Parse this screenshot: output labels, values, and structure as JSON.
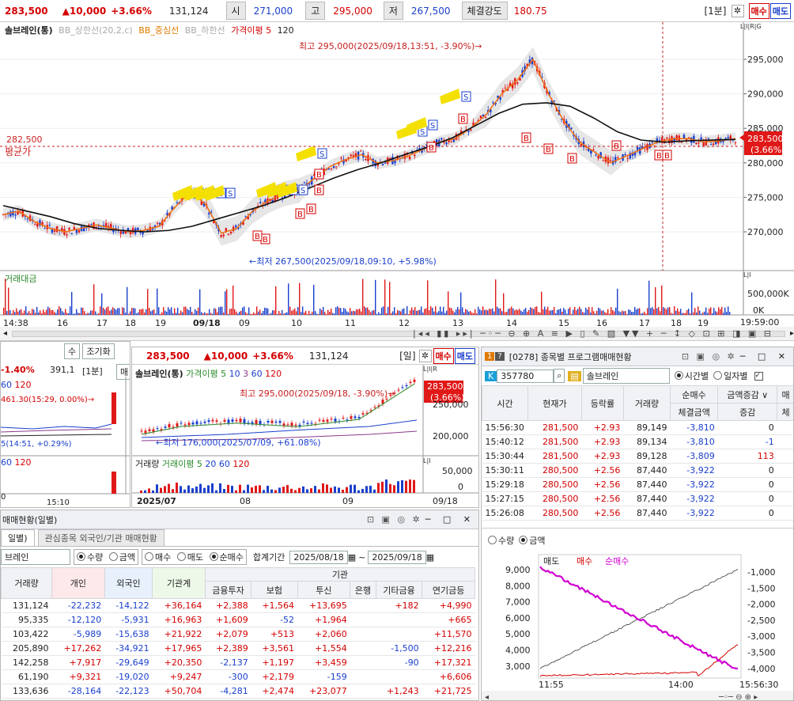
{
  "top": {
    "price": "283,500",
    "change": "▲10,000",
    "rate": "+3.66%",
    "volume": "131,124",
    "open_lbl": "시",
    "open": "271,000",
    "high_lbl": "고",
    "high": "295,000",
    "low_lbl": "저",
    "low": "267,500",
    "strength_lbl": "체결강도",
    "strength": "180.75",
    "period": "[1분]",
    "buy": "매수",
    "sell": "매도"
  },
  "main": {
    "legend_name": "솔브레인(통)",
    "legend_bb_up": "BB_상한선(20,2,c)",
    "legend_bb_mid": "BB_중심선",
    "legend_bb_low": "BB_하한선",
    "legend_ma": "가격이평 5",
    "legend_120": "120",
    "max_note": "최고 295,000(2025/09/18,13:51, -3.90%)→",
    "min_note": "←최저 267,500(2025/09/18,09:10, +5.98%)",
    "avg_price": "282,500",
    "avg_label": "평균가",
    "cur_price": "283,500",
    "cur_rate": "(3.66%)",
    "y_ticks": [
      "295,000",
      "290,000",
      "285,000",
      "280,000",
      "275,000",
      "270,000"
    ],
    "vol_legend": "거래대금",
    "vol_ticks": [
      "500,000K",
      "0K"
    ],
    "x_ticks": [
      "14:38",
      "16",
      "17",
      "18",
      "19",
      "09/18",
      "09",
      "10",
      "11",
      "12",
      "13",
      "14",
      "15",
      "16",
      "17",
      "18",
      "19"
    ],
    "time_end": "19:59:00",
    "lirg": "L|I|R|G",
    "li": "L|I"
  },
  "chart_data": {
    "type": "candlestick",
    "title": "솔브레인(통)",
    "intraday_close_path": [
      272500,
      273000,
      271500,
      270500,
      270000,
      270500,
      271000,
      270500,
      270000,
      270200,
      270800,
      273500,
      275800,
      274000,
      269800,
      270500,
      273000,
      274500,
      275500,
      276000,
      277800,
      279500,
      280500,
      281200,
      280000,
      280300,
      281000,
      282000,
      283000,
      283500,
      285000,
      287000,
      290000,
      292000,
      295000,
      290000,
      286000,
      283000,
      281500,
      280000,
      281000,
      282000,
      283000,
      283500,
      283500,
      283000,
      283200,
      283500
    ],
    "ma120_path": [
      273800,
      273000,
      272200,
      271200,
      270500,
      270200,
      270000,
      270200,
      270800,
      271800,
      272800,
      273800,
      275000,
      276400,
      277800,
      279000,
      280000,
      281200,
      282300,
      283600,
      285400,
      287200,
      288500,
      288700,
      288200,
      286500,
      284500,
      283300,
      283000,
      283200,
      283300,
      283400
    ],
    "markers": [
      "S",
      "S",
      "S",
      "S",
      "S",
      "S",
      "S",
      "S",
      "S",
      "S",
      "S",
      "B",
      "B",
      "B",
      "B",
      "B",
      "B",
      "B",
      "B",
      "B",
      "B",
      "B",
      "B",
      "B",
      "B"
    ]
  },
  "daily": {
    "price": "283,500",
    "change": "▲10,000",
    "rate": "+3.66%",
    "volume": "131,124",
    "period": "[일]",
    "buy": "매수",
    "sell": "매도",
    "legend_name": "솔브레인(통)",
    "legend_ma": "가격이평 5",
    "legend_10": "10",
    "legend_3": "3",
    "legend_60": "60",
    "legend_120": "120",
    "max_note": "최고 295,000(2025/09/18, -3.90%)→",
    "min_note": "←최저 176,000(2025/07/09, +61.08%)",
    "cur_price": "283,500",
    "cur_rate": "(3.66%)",
    "y_ticks": [
      "250,000",
      "200,000"
    ],
    "vol_legend": "거래량",
    "vol_ma": "거래이평 5",
    "vol_20": "20",
    "vol_60": "60",
    "vol_120": "120",
    "vol_ticks": [
      "50,000",
      "0"
    ],
    "x_month1": "2025/07",
    "x_month2": "08",
    "x_month3": "09",
    "x_end": "09/18",
    "lirg": "L|I|R",
    "li": "L|I"
  },
  "leftmini": {
    "rate": "-1.40%",
    "vol": "391,1",
    "period": "[1분]",
    "legend_60": "60",
    "legend_120": "120",
    "note1": "461.30(15:29, 0.00%)→",
    "note2": "5(14:51, +0.29%)",
    "legend2_60": "60",
    "legend2_120": "120",
    "x_label": "15:10",
    "x_label0": "0",
    "btn1": "수",
    "btn2": "조기화",
    "btn3": "매"
  },
  "program": {
    "title": "[0278] 종목별 프로그램매매현황",
    "code": "357780",
    "name": "솔브레인",
    "opt_time": "시간별",
    "opt_day": "일자별",
    "headers": [
      "시간",
      "현재가",
      "등락률",
      "거래량",
      "순매수",
      "금액증감",
      "매"
    ],
    "subheaders": [
      "체결금액",
      "증감",
      "체"
    ],
    "rows": [
      [
        "15:56:30",
        "281,500",
        "+2.93",
        "89,149",
        "-3,810",
        "0"
      ],
      [
        "15:40:12",
        "281,500",
        "+2.93",
        "89,134",
        "-3,810",
        "-1"
      ],
      [
        "15:30:44",
        "281,500",
        "+2.93",
        "89,128",
        "-3,809",
        "113"
      ],
      [
        "15:30:11",
        "280,500",
        "+2.56",
        "87,440",
        "-3,922",
        "0"
      ],
      [
        "15:29:18",
        "280,500",
        "+2.56",
        "87,440",
        "-3,922",
        "0"
      ],
      [
        "15:27:15",
        "280,500",
        "+2.56",
        "87,440",
        "-3,922",
        "0"
      ],
      [
        "15:26:08",
        "280,500",
        "+2.56",
        "87,440",
        "-3,922",
        "0"
      ]
    ],
    "opt_qty": "수량",
    "opt_amt": "금액",
    "legend_sell": "매도",
    "legend_buy": "매수",
    "legend_net": "순매수",
    "y_left": [
      "9,000",
      "8,000",
      "7,000",
      "6,000",
      "5,000",
      "4,000",
      "3,000"
    ],
    "y_right": [
      "-1,000",
      "-1,500",
      "-2,000",
      "-2,500",
      "-3,000",
      "-3,500",
      "-4,000"
    ],
    "x_ticks": [
      "11:55",
      "14:00"
    ],
    "time_end": "15:56:30"
  },
  "trading": {
    "title": "매매현황(일별)",
    "tab1": "일별)",
    "tab2": "관심종목 외국인/기관 매매현황",
    "name": "브레인",
    "opt_qty": "수량",
    "opt_amt": "금액",
    "opt_buy": "매수",
    "opt_sell": "매도",
    "opt_net": "순매수",
    "period_lbl": "합계기간",
    "date_from": "2025/08/18",
    "tilde": "~",
    "date_to": "2025/09/18",
    "header_top": "기관",
    "headers": [
      "거래량",
      "개인",
      "외국인",
      "기관계",
      "금융투자",
      "보험",
      "투신",
      "은행",
      "기타금융",
      "연기금등"
    ],
    "rows": [
      [
        "131,124",
        "-22,232",
        "-14,122",
        "+36,164",
        "+2,388",
        "+1,564",
        "+13,695",
        "",
        "+182",
        "+4,990"
      ],
      [
        "95,335",
        "-12,120",
        "-5,931",
        "+16,963",
        "+1,609",
        "-52",
        "+1,964",
        "",
        "",
        "+665"
      ],
      [
        "103,422",
        "-5,989",
        "-15,638",
        "+21,922",
        "+2,079",
        "+513",
        "+2,060",
        "",
        "",
        "+11,570"
      ],
      [
        "205,890",
        "+17,262",
        "-34,921",
        "+17,965",
        "+2,389",
        "+3,561",
        "+1,554",
        "",
        "-1,500",
        "+12,216"
      ],
      [
        "142,258",
        "+7,917",
        "-29,649",
        "+20,350",
        "-2,137",
        "+1,197",
        "+3,459",
        "",
        "-90",
        "+17,321"
      ],
      [
        "61,190",
        "+9,321",
        "-19,020",
        "+9,247",
        "-300",
        "+2,179",
        "-159",
        "",
        "",
        "+6,606"
      ],
      [
        "133,636",
        "-28,164",
        "-22,123",
        "+50,704",
        "-4,281",
        "+2,474",
        "+23,077",
        "",
        "+1,243",
        "+21,725"
      ]
    ]
  }
}
